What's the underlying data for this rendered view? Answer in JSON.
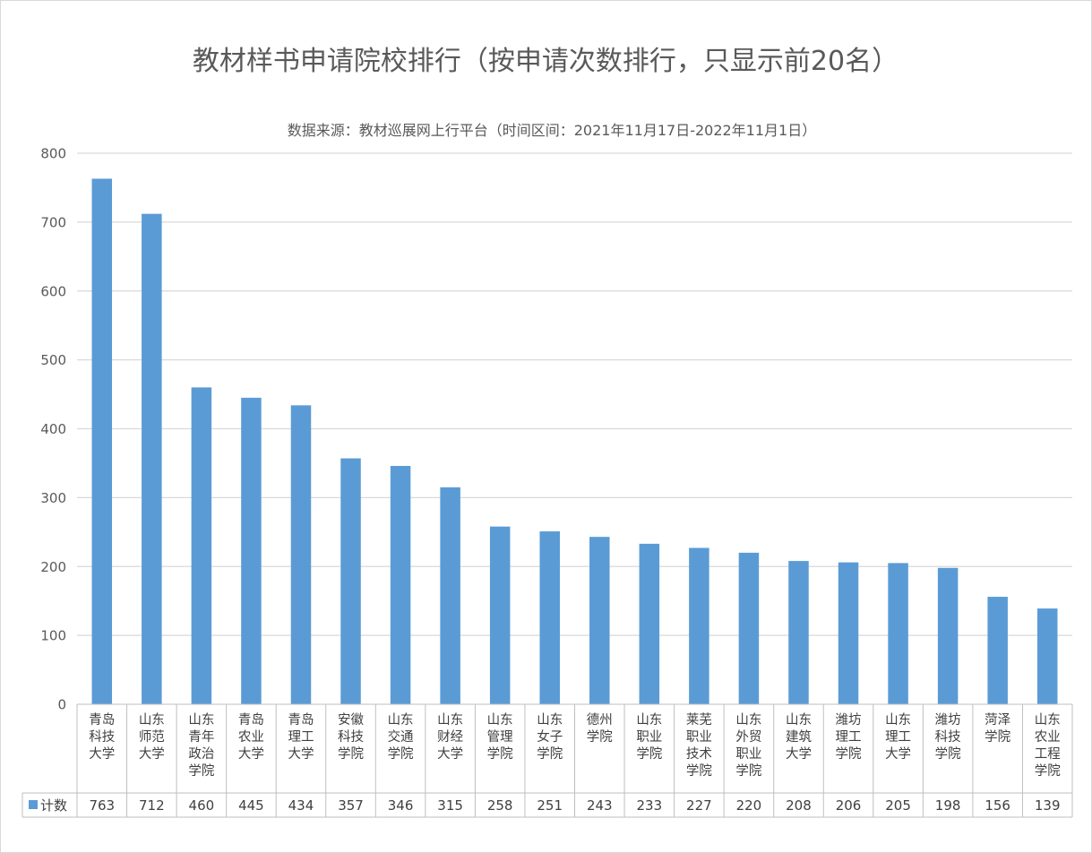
{
  "chart_data": {
    "type": "bar",
    "title": "教材样书申请院校排行（按申请次数排行，只显示前20名）",
    "subtitle": "数据来源：教材巡展网上行平台（时间区间：2021年11月17日-2022年11月1日）",
    "categories": [
      [
        "青岛",
        "科技",
        "大学"
      ],
      [
        "山东",
        "师范",
        "大学"
      ],
      [
        "山东",
        "青年",
        "政治",
        "学院"
      ],
      [
        "青岛",
        "农业",
        "大学"
      ],
      [
        "青岛",
        "理工",
        "大学"
      ],
      [
        "安徽",
        "科技",
        "学院"
      ],
      [
        "山东",
        "交通",
        "学院"
      ],
      [
        "山东",
        "财经",
        "大学"
      ],
      [
        "山东",
        "管理",
        "学院"
      ],
      [
        "山东",
        "女子",
        "学院"
      ],
      [
        "德州",
        "学院"
      ],
      [
        "山东",
        "职业",
        "学院"
      ],
      [
        "莱芜",
        "职业",
        "技术",
        "学院"
      ],
      [
        "山东",
        "外贸",
        "职业",
        "学院"
      ],
      [
        "山东",
        "建筑",
        "大学"
      ],
      [
        "潍坊",
        "理工",
        "学院"
      ],
      [
        "山东",
        "理工",
        "大学"
      ],
      [
        "潍坊",
        "科技",
        "学院"
      ],
      [
        "菏泽",
        "学院"
      ],
      [
        "山东",
        "农业",
        "工程",
        "学院"
      ]
    ],
    "series": [
      {
        "name": "计数",
        "values": [
          763,
          712,
          460,
          445,
          434,
          357,
          346,
          315,
          258,
          251,
          243,
          233,
          227,
          220,
          208,
          206,
          205,
          198,
          156,
          139
        ]
      }
    ],
    "ylim": [
      0,
      800
    ],
    "yticks": [
      0,
      100,
      200,
      300,
      400,
      500,
      600,
      700,
      800
    ],
    "grid": true,
    "legend": "data-table",
    "colors": {
      "bar": "#5B9BD5",
      "grid": "#D9D9D9",
      "text": "#595959"
    }
  }
}
